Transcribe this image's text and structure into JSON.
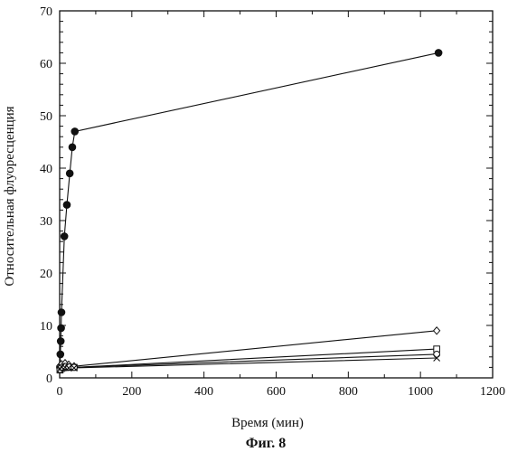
{
  "chart_data": {
    "type": "scatter",
    "xlabel": "Время (мин)",
    "ylabel": "Относительная флуоресценция",
    "caption": "Фиг. 8",
    "xlim": [
      0,
      1200
    ],
    "ylim": [
      0,
      70
    ],
    "x_ticks": [
      "0",
      "200",
      "400",
      "600",
      "800",
      "1000",
      "1200"
    ],
    "y_ticks": [
      "0",
      "10",
      "20",
      "30",
      "40",
      "50",
      "60",
      "70"
    ],
    "grid": false,
    "legend": "none",
    "series": [
      {
        "marker": "filled-circle",
        "connected": true,
        "points": [
          [
            1,
            2
          ],
          [
            2,
            4.5
          ],
          [
            3,
            7
          ],
          [
            4,
            9.5
          ],
          [
            5,
            12.5
          ],
          [
            13,
            27
          ],
          [
            20,
            33
          ],
          [
            28,
            39
          ],
          [
            35,
            44
          ],
          [
            42,
            47
          ],
          [
            1050,
            62
          ]
        ]
      },
      {
        "marker": "open-diamond",
        "connected": true,
        "points": [
          [
            1,
            2.3
          ],
          [
            5,
            2.6
          ],
          [
            15,
            2.8
          ],
          [
            25,
            2.5
          ],
          [
            40,
            2.2
          ],
          [
            1045,
            9
          ]
        ]
      },
      {
        "marker": "open-square",
        "connected": true,
        "points": [
          [
            1,
            1.5
          ],
          [
            5,
            1.8
          ],
          [
            15,
            2.0
          ],
          [
            25,
            2.0
          ],
          [
            40,
            2.0
          ],
          [
            1045,
            5.5
          ]
        ]
      },
      {
        "marker": "open-circle",
        "connected": true,
        "points": [
          [
            1,
            1.6
          ],
          [
            5,
            2.0
          ],
          [
            15,
            2.2
          ],
          [
            25,
            2.1
          ],
          [
            40,
            2.0
          ],
          [
            1045,
            4.5
          ]
        ]
      },
      {
        "marker": "cross",
        "connected": true,
        "points": [
          [
            1,
            1.7
          ],
          [
            5,
            2.1
          ],
          [
            15,
            2.0
          ],
          [
            25,
            1.9
          ],
          [
            40,
            1.9
          ],
          [
            1045,
            3.8
          ]
        ]
      }
    ]
  }
}
